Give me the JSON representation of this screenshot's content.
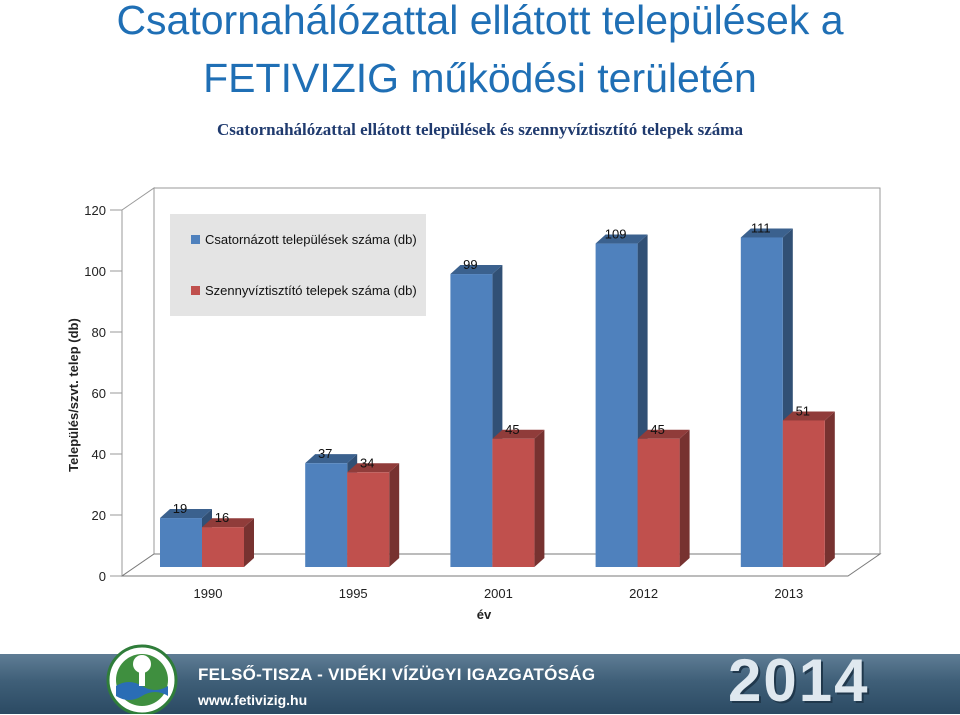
{
  "page": {
    "title_line1": "Csatornahálózattal ellátott települések a",
    "title_line2": "FETIVIZIG működési területén",
    "subtitle": "Csatornahálózattal ellátott települések és szennyvíztisztító telepek száma"
  },
  "chart_data": {
    "type": "bar",
    "title": "Csatornahálózattal ellátott települések és szennyvíztisztító telepek száma",
    "xlabel": "év",
    "ylabel": "Település/szvt. telep (db)",
    "categories": [
      "1990",
      "1995",
      "2001",
      "2012",
      "2013"
    ],
    "series": [
      {
        "name": "Csatornázott települések száma (db)",
        "values": [
          19,
          37,
          99,
          109,
          111
        ],
        "color": "#4f81bd"
      },
      {
        "name": "Szennyvíztisztító telepek száma (db)",
        "values": [
          16,
          34,
          45,
          45,
          51
        ],
        "color": "#c0504d"
      }
    ],
    "ylim": [
      0,
      120
    ],
    "yticks": [
      0,
      20,
      40,
      60,
      80,
      100,
      120
    ],
    "legend_position": "top-left",
    "three_d": true
  },
  "footer": {
    "organization": "FELSŐ-TISZA - VIDÉKI VÍZÜGYI IGAZGATÓSÁG",
    "website": "www.fetivizig.hu",
    "year": "2014"
  }
}
